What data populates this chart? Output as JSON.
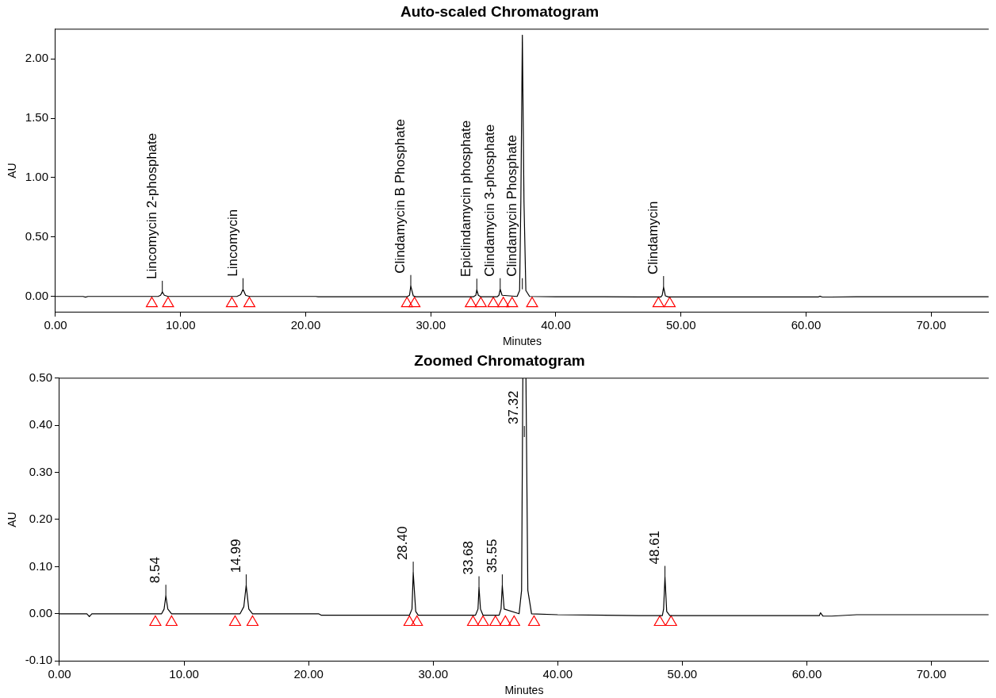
{
  "chart_data": [
    {
      "type": "line",
      "title": "Auto-scaled Chromatogram",
      "xlabel": "Minutes",
      "ylabel": "AU",
      "xlim": [
        0,
        74.6
      ],
      "ylim": [
        -0.13,
        2.25
      ],
      "xticks": [
        {
          "value": 0,
          "label": "0.00"
        },
        {
          "value": 10,
          "label": "10.00"
        },
        {
          "value": 20,
          "label": "20.00"
        },
        {
          "value": 30,
          "label": "30.00"
        },
        {
          "value": 40,
          "label": "40.00"
        },
        {
          "value": 50,
          "label": "50.00"
        },
        {
          "value": 60,
          "label": "60.00"
        },
        {
          "value": 70,
          "label": "70.00"
        }
      ],
      "yticks": [
        {
          "value": 0,
          "label": "0.00"
        },
        {
          "value": 0.5,
          "label": "0.50"
        },
        {
          "value": 1,
          "label": "1.00"
        },
        {
          "value": 1.5,
          "label": "1.50"
        },
        {
          "value": 2,
          "label": "2.00"
        }
      ],
      "legend": false,
      "series": [
        {
          "type": "line",
          "color": "#000000",
          "marker": "none",
          "x": [
            0,
            2.2,
            2.4,
            2.6,
            8.2,
            8.4,
            8.54,
            8.7,
            9.0,
            14.5,
            14.8,
            14.99,
            15.2,
            15.5,
            20.8,
            21.0,
            28.1,
            28.3,
            28.4,
            28.6,
            28.8,
            33.4,
            33.6,
            33.68,
            33.8,
            34.0,
            35.3,
            35.45,
            35.55,
            35.7,
            36.9,
            37.1,
            37.2,
            37.32,
            37.45,
            37.6,
            37.9,
            40,
            46.5,
            48.4,
            48.5,
            48.61,
            48.75,
            49,
            61,
            61.1,
            61.3,
            62,
            64,
            74.6
          ],
          "values": [
            0,
            0,
            -0.006,
            0,
            0,
            0.01,
            0.038,
            0.01,
            0,
            0,
            0.015,
            0.06,
            0.01,
            0,
            0,
            -0.003,
            -0.003,
            0.01,
            0.087,
            0.005,
            -0.003,
            -0.003,
            0.01,
            0.056,
            0.01,
            -0.003,
            -0.003,
            0.01,
            0.06,
            0.01,
            0,
            0.05,
            0.8,
            2.2,
            0.8,
            0.05,
            0,
            -0.002,
            -0.004,
            -0.004,
            0.01,
            0.078,
            0.005,
            -0.004,
            -0.004,
            0.002,
            -0.005,
            -0.005,
            -0.002,
            -0.002
          ]
        },
        {
          "type": "scatter",
          "color": "#ff0000",
          "marker": "triangle",
          "x": [
            7.7,
            9.0,
            14.1,
            15.5,
            28.1,
            28.7,
            33.2,
            34.0,
            35.0,
            35.8,
            36.5,
            38.1,
            48.2,
            49.1
          ],
          "values": [
            -0.06,
            -0.06,
            -0.06,
            -0.06,
            -0.06,
            -0.06,
            -0.06,
            -0.06,
            -0.06,
            -0.06,
            -0.06,
            -0.06,
            -0.06,
            -0.06
          ]
        }
      ],
      "annotations": [
        {
          "text": "Lincomycin 2-phosphate",
          "x": 8.54,
          "y": 0.038
        },
        {
          "text": "Lincomycin",
          "x": 14.99,
          "y": 0.06
        },
        {
          "text": "Clindamycin B Phosphate",
          "x": 28.4,
          "y": 0.087
        },
        {
          "text": "Epiclindamycin phosphate",
          "x": 33.68,
          "y": 0.056
        },
        {
          "text": "Clindamycin 3-phosphate",
          "x": 35.55,
          "y": 0.06
        },
        {
          "text": "Clindamycin Phosphate",
          "x": 37.32,
          "y": 0.06
        },
        {
          "text": "Clindamycin",
          "x": 48.61,
          "y": 0.078
        }
      ]
    },
    {
      "type": "line",
      "title": "Zoomed Chromatogram",
      "xlabel": "Minutes",
      "ylabel": "AU",
      "xlim": [
        0,
        74.6
      ],
      "ylim": [
        -0.1,
        0.5
      ],
      "xticks": [
        {
          "value": 0,
          "label": "0.00"
        },
        {
          "value": 10,
          "label": "10.00"
        },
        {
          "value": 20,
          "label": "20.00"
        },
        {
          "value": 30,
          "label": "30.00"
        },
        {
          "value": 40,
          "label": "40.00"
        },
        {
          "value": 50,
          "label": "50.00"
        },
        {
          "value": 60,
          "label": "60.00"
        },
        {
          "value": 70,
          "label": "70.00"
        }
      ],
      "yticks": [
        {
          "value": -0.1,
          "label": "-0.10"
        },
        {
          "value": 0,
          "label": "0.00"
        },
        {
          "value": 0.1,
          "label": "0.10"
        },
        {
          "value": 0.2,
          "label": "0.20"
        },
        {
          "value": 0.3,
          "label": "0.30"
        },
        {
          "value": 0.4,
          "label": "0.40"
        },
        {
          "value": 0.5,
          "label": "0.50"
        }
      ],
      "legend": false,
      "series": [
        {
          "type": "line",
          "color": "#000000",
          "marker": "none",
          "x": [
            0,
            2.2,
            2.4,
            2.6,
            8.2,
            8.4,
            8.54,
            8.7,
            9.0,
            14.5,
            14.8,
            14.99,
            15.2,
            15.5,
            20.8,
            21.0,
            28.1,
            28.3,
            28.4,
            28.6,
            28.8,
            33.4,
            33.6,
            33.68,
            33.8,
            34.0,
            35.3,
            35.45,
            35.55,
            35.7,
            36.9,
            37.1,
            37.2,
            37.32,
            37.45,
            37.6,
            37.9,
            40,
            46.5,
            48.4,
            48.5,
            48.61,
            48.75,
            49,
            61,
            61.1,
            61.3,
            62,
            64,
            74.6
          ],
          "values": [
            0,
            0,
            -0.006,
            0,
            0,
            0.01,
            0.038,
            0.01,
            0,
            0,
            0.015,
            0.06,
            0.01,
            0,
            0,
            -0.003,
            -0.003,
            0.01,
            0.087,
            0.005,
            -0.003,
            -0.003,
            0.01,
            0.056,
            0.01,
            -0.003,
            -0.003,
            0.01,
            0.06,
            0.01,
            0,
            0.05,
            0.5,
            null,
            0.5,
            0.05,
            0,
            -0.002,
            -0.004,
            -0.004,
            0.01,
            0.078,
            0.005,
            -0.004,
            -0.004,
            0.002,
            -0.005,
            -0.005,
            -0.002,
            -0.002
          ]
        },
        {
          "type": "scatter",
          "color": "#ff0000",
          "marker": "triangle",
          "x": [
            7.7,
            9.0,
            14.1,
            15.5,
            28.1,
            28.7,
            33.2,
            34.0,
            35.0,
            35.8,
            36.5,
            38.1,
            48.2,
            49.1
          ],
          "values": [
            -0.018,
            -0.018,
            -0.018,
            -0.018,
            -0.018,
            -0.018,
            -0.018,
            -0.018,
            -0.018,
            -0.018,
            -0.018,
            -0.018,
            -0.018,
            -0.018
          ]
        }
      ],
      "annotations": [
        {
          "text": "8.54",
          "x": 8.54,
          "y": 0.038
        },
        {
          "text": "14.99",
          "x": 14.99,
          "y": 0.06
        },
        {
          "text": "28.40",
          "x": 28.4,
          "y": 0.087
        },
        {
          "text": "33.68",
          "x": 33.68,
          "y": 0.056
        },
        {
          "text": "35.55",
          "x": 35.55,
          "y": 0.06
        },
        {
          "text": "37.32",
          "x": 37.32,
          "y": 0.375
        },
        {
          "text": "48.61",
          "x": 48.61,
          "y": 0.078
        }
      ]
    }
  ]
}
